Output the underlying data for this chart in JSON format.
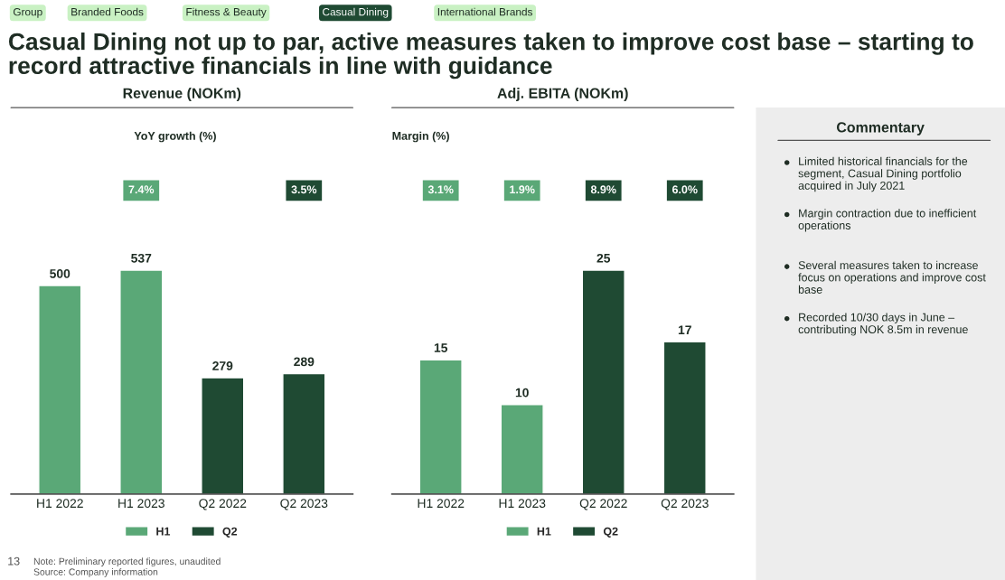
{
  "chart_data": [
    {
      "type": "other",
      "title": "Casual Dining not up to par, active measures taken to improve cost base – starting to record attractive financials in line with guidance",
      "annotations": [
        "Group",
        "Branded Foods",
        "Fitness & Beauty",
        "Casual Dining",
        "International Brands"
      ],
      "colors": [
        "#c9f1c3",
        "#c9f1c3",
        "#c9f1c3",
        "#1f4a33",
        "#c9f1c3"
      ]
    },
    {
      "type": "bar",
      "title": "Revenue (NOKm)",
      "subtitle": "YoY growth (%)",
      "categories": [
        "H1 2022",
        "H1 2023",
        "Q2 2022",
        "Q2 2023"
      ],
      "series": [
        {
          "name": "H1",
          "color": "#5aa877",
          "values": [
            500,
            537,
            null,
            null
          ]
        },
        {
          "name": "Q2",
          "color": "#1f4a33",
          "values": [
            null,
            null,
            279,
            289
          ]
        }
      ],
      "annotations": [
        "7.4%",
        "3.5%"
      ],
      "data_labels": true,
      "legend": "bottom",
      "grid": false
    },
    {
      "type": "bar",
      "title": "Adj. EBITA (NOKm)",
      "subtitle": "Margin (%)",
      "categories": [
        "H1 2022",
        "H1 2023",
        "Q2 2022",
        "Q2 2023"
      ],
      "series": [
        {
          "name": "H1",
          "color": "#5aa877",
          "values": [
            15,
            10,
            null,
            null
          ]
        },
        {
          "name": "Q2",
          "color": "#1f4a33",
          "values": [
            null,
            null,
            25,
            17
          ]
        }
      ],
      "annotations": [
        "3.1%",
        "1.9%",
        "8.9%",
        "6.0%"
      ],
      "data_labels": true,
      "legend": "bottom",
      "grid": false
    },
    {
      "type": "other",
      "title": "Commentary",
      "annotations": [
        "Limited historical financials for the segment, Casual Dining portfolio acquired in July 2021",
        "Margin contraction due to inefficient operations",
        "Several measures taken to increase focus on operations and improve cost base",
        "Recorded 10/30 days in June – contributing NOK 8.5m in revenue"
      ]
    },
    {
      "type": "other",
      "annotations": [
        "13",
        "Note: Preliminary reported figures, unaudited",
        "Source: Company information"
      ]
    }
  ]
}
